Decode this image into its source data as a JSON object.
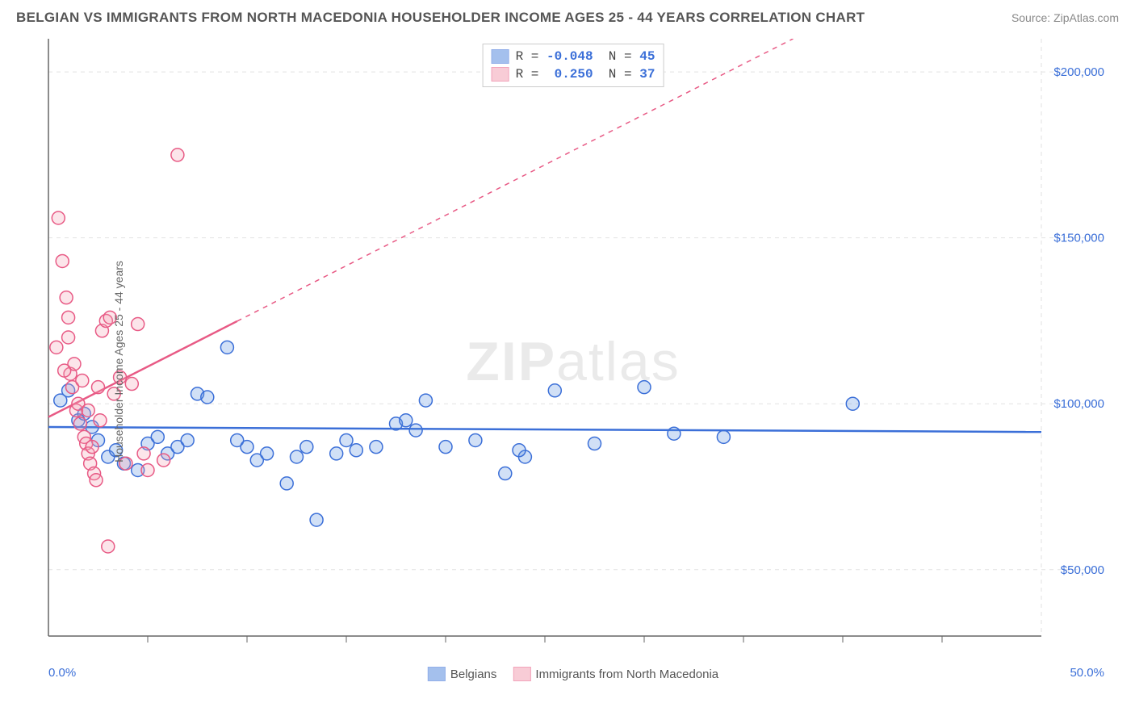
{
  "title": "BELGIAN VS IMMIGRANTS FROM NORTH MACEDONIA HOUSEHOLDER INCOME AGES 25 - 44 YEARS CORRELATION CHART",
  "source": "Source: ZipAtlas.com",
  "y_axis_label": "Householder Income Ages 25 - 44 years",
  "watermark": "ZIPatlas",
  "chart": {
    "type": "scatter",
    "xlim": [
      0,
      50
    ],
    "ylim": [
      30000,
      210000
    ],
    "x_ticks": [
      0,
      50
    ],
    "x_tick_labels": [
      "0.0%",
      "50.0%"
    ],
    "y_ticks": [
      50000,
      100000,
      150000,
      200000
    ],
    "y_tick_labels": [
      "$50,000",
      "$100,000",
      "$150,000",
      "$200,000"
    ],
    "grid_color": "#e2e2e2",
    "grid_dash": "5,5",
    "axis_color": "#666666",
    "background_color": "#ffffff",
    "label_color": "#3b6fd8",
    "marker_radius": 8,
    "marker_stroke_width": 1.5,
    "marker_fill_opacity": 0.28,
    "trend_line_width": 2.5,
    "trend_dash": "6,6",
    "minor_x_ticks": [
      5,
      10,
      15,
      20,
      25,
      30,
      35,
      40,
      45
    ]
  },
  "series": [
    {
      "name": "Belgians",
      "color": "#5a8ee0",
      "stroke": "#3b6fd8",
      "R": "-0.048",
      "N": "45",
      "trend": {
        "x1": 0,
        "y1": 93000,
        "x2": 50,
        "y2": 91500,
        "solid_to_x": 50
      },
      "points": [
        [
          0.6,
          101000
        ],
        [
          1.0,
          104000
        ],
        [
          1.5,
          95000
        ],
        [
          1.8,
          97000
        ],
        [
          2.2,
          93000
        ],
        [
          2.5,
          89000
        ],
        [
          3.0,
          84000
        ],
        [
          3.4,
          86000
        ],
        [
          3.8,
          82000
        ],
        [
          4.5,
          80000
        ],
        [
          5.0,
          88000
        ],
        [
          5.5,
          90000
        ],
        [
          6.0,
          85000
        ],
        [
          6.5,
          87000
        ],
        [
          7.0,
          89000
        ],
        [
          7.5,
          103000
        ],
        [
          8.0,
          102000
        ],
        [
          9.0,
          117000
        ],
        [
          9.5,
          89000
        ],
        [
          10.0,
          87000
        ],
        [
          10.5,
          83000
        ],
        [
          11.0,
          85000
        ],
        [
          12.0,
          76000
        ],
        [
          12.5,
          84000
        ],
        [
          13.0,
          87000
        ],
        [
          13.5,
          65000
        ],
        [
          14.5,
          85000
        ],
        [
          15.5,
          86000
        ],
        [
          16.5,
          87000
        ],
        [
          17.5,
          94000
        ],
        [
          18.5,
          92000
        ],
        [
          19.0,
          101000
        ],
        [
          20.0,
          87000
        ],
        [
          21.5,
          89000
        ],
        [
          23.0,
          79000
        ],
        [
          24.0,
          84000
        ],
        [
          25.5,
          104000
        ],
        [
          27.5,
          88000
        ],
        [
          30.0,
          105000
        ],
        [
          31.5,
          91000
        ],
        [
          34.0,
          90000
        ],
        [
          40.5,
          100000
        ],
        [
          23.7,
          86000
        ],
        [
          18.0,
          95000
        ],
        [
          15.0,
          89000
        ]
      ]
    },
    {
      "name": "Immigrants from North Macedonia",
      "color": "#f4a3b5",
      "stroke": "#e85a85",
      "R": "0.250",
      "N": "37",
      "trend": {
        "x1": 0,
        "y1": 96000,
        "x2": 50,
        "y2": 248000,
        "solid_to_x": 9.5
      },
      "points": [
        [
          0.4,
          117000
        ],
        [
          0.5,
          156000
        ],
        [
          0.7,
          143000
        ],
        [
          0.9,
          132000
        ],
        [
          1.0,
          120000
        ],
        [
          1.1,
          109000
        ],
        [
          1.2,
          105000
        ],
        [
          1.3,
          112000
        ],
        [
          1.4,
          98000
        ],
        [
          1.5,
          100000
        ],
        [
          1.6,
          94000
        ],
        [
          1.7,
          107000
        ],
        [
          1.8,
          90000
        ],
        [
          1.9,
          88000
        ],
        [
          2.0,
          85000
        ],
        [
          2.1,
          82000
        ],
        [
          2.2,
          87000
        ],
        [
          2.3,
          79000
        ],
        [
          2.4,
          77000
        ],
        [
          2.5,
          105000
        ],
        [
          2.7,
          122000
        ],
        [
          2.9,
          125000
        ],
        [
          3.1,
          126000
        ],
        [
          3.3,
          103000
        ],
        [
          3.6,
          108000
        ],
        [
          3.9,
          82000
        ],
        [
          4.2,
          106000
        ],
        [
          4.5,
          124000
        ],
        [
          4.8,
          85000
        ],
        [
          5.0,
          80000
        ],
        [
          5.8,
          83000
        ],
        [
          6.5,
          175000
        ],
        [
          3.0,
          57000
        ],
        [
          2.6,
          95000
        ],
        [
          2.0,
          98000
        ],
        [
          1.0,
          126000
        ],
        [
          0.8,
          110000
        ]
      ]
    }
  ],
  "legend_bottom": {
    "items": [
      "Belgians",
      "Immigrants from North Macedonia"
    ]
  }
}
